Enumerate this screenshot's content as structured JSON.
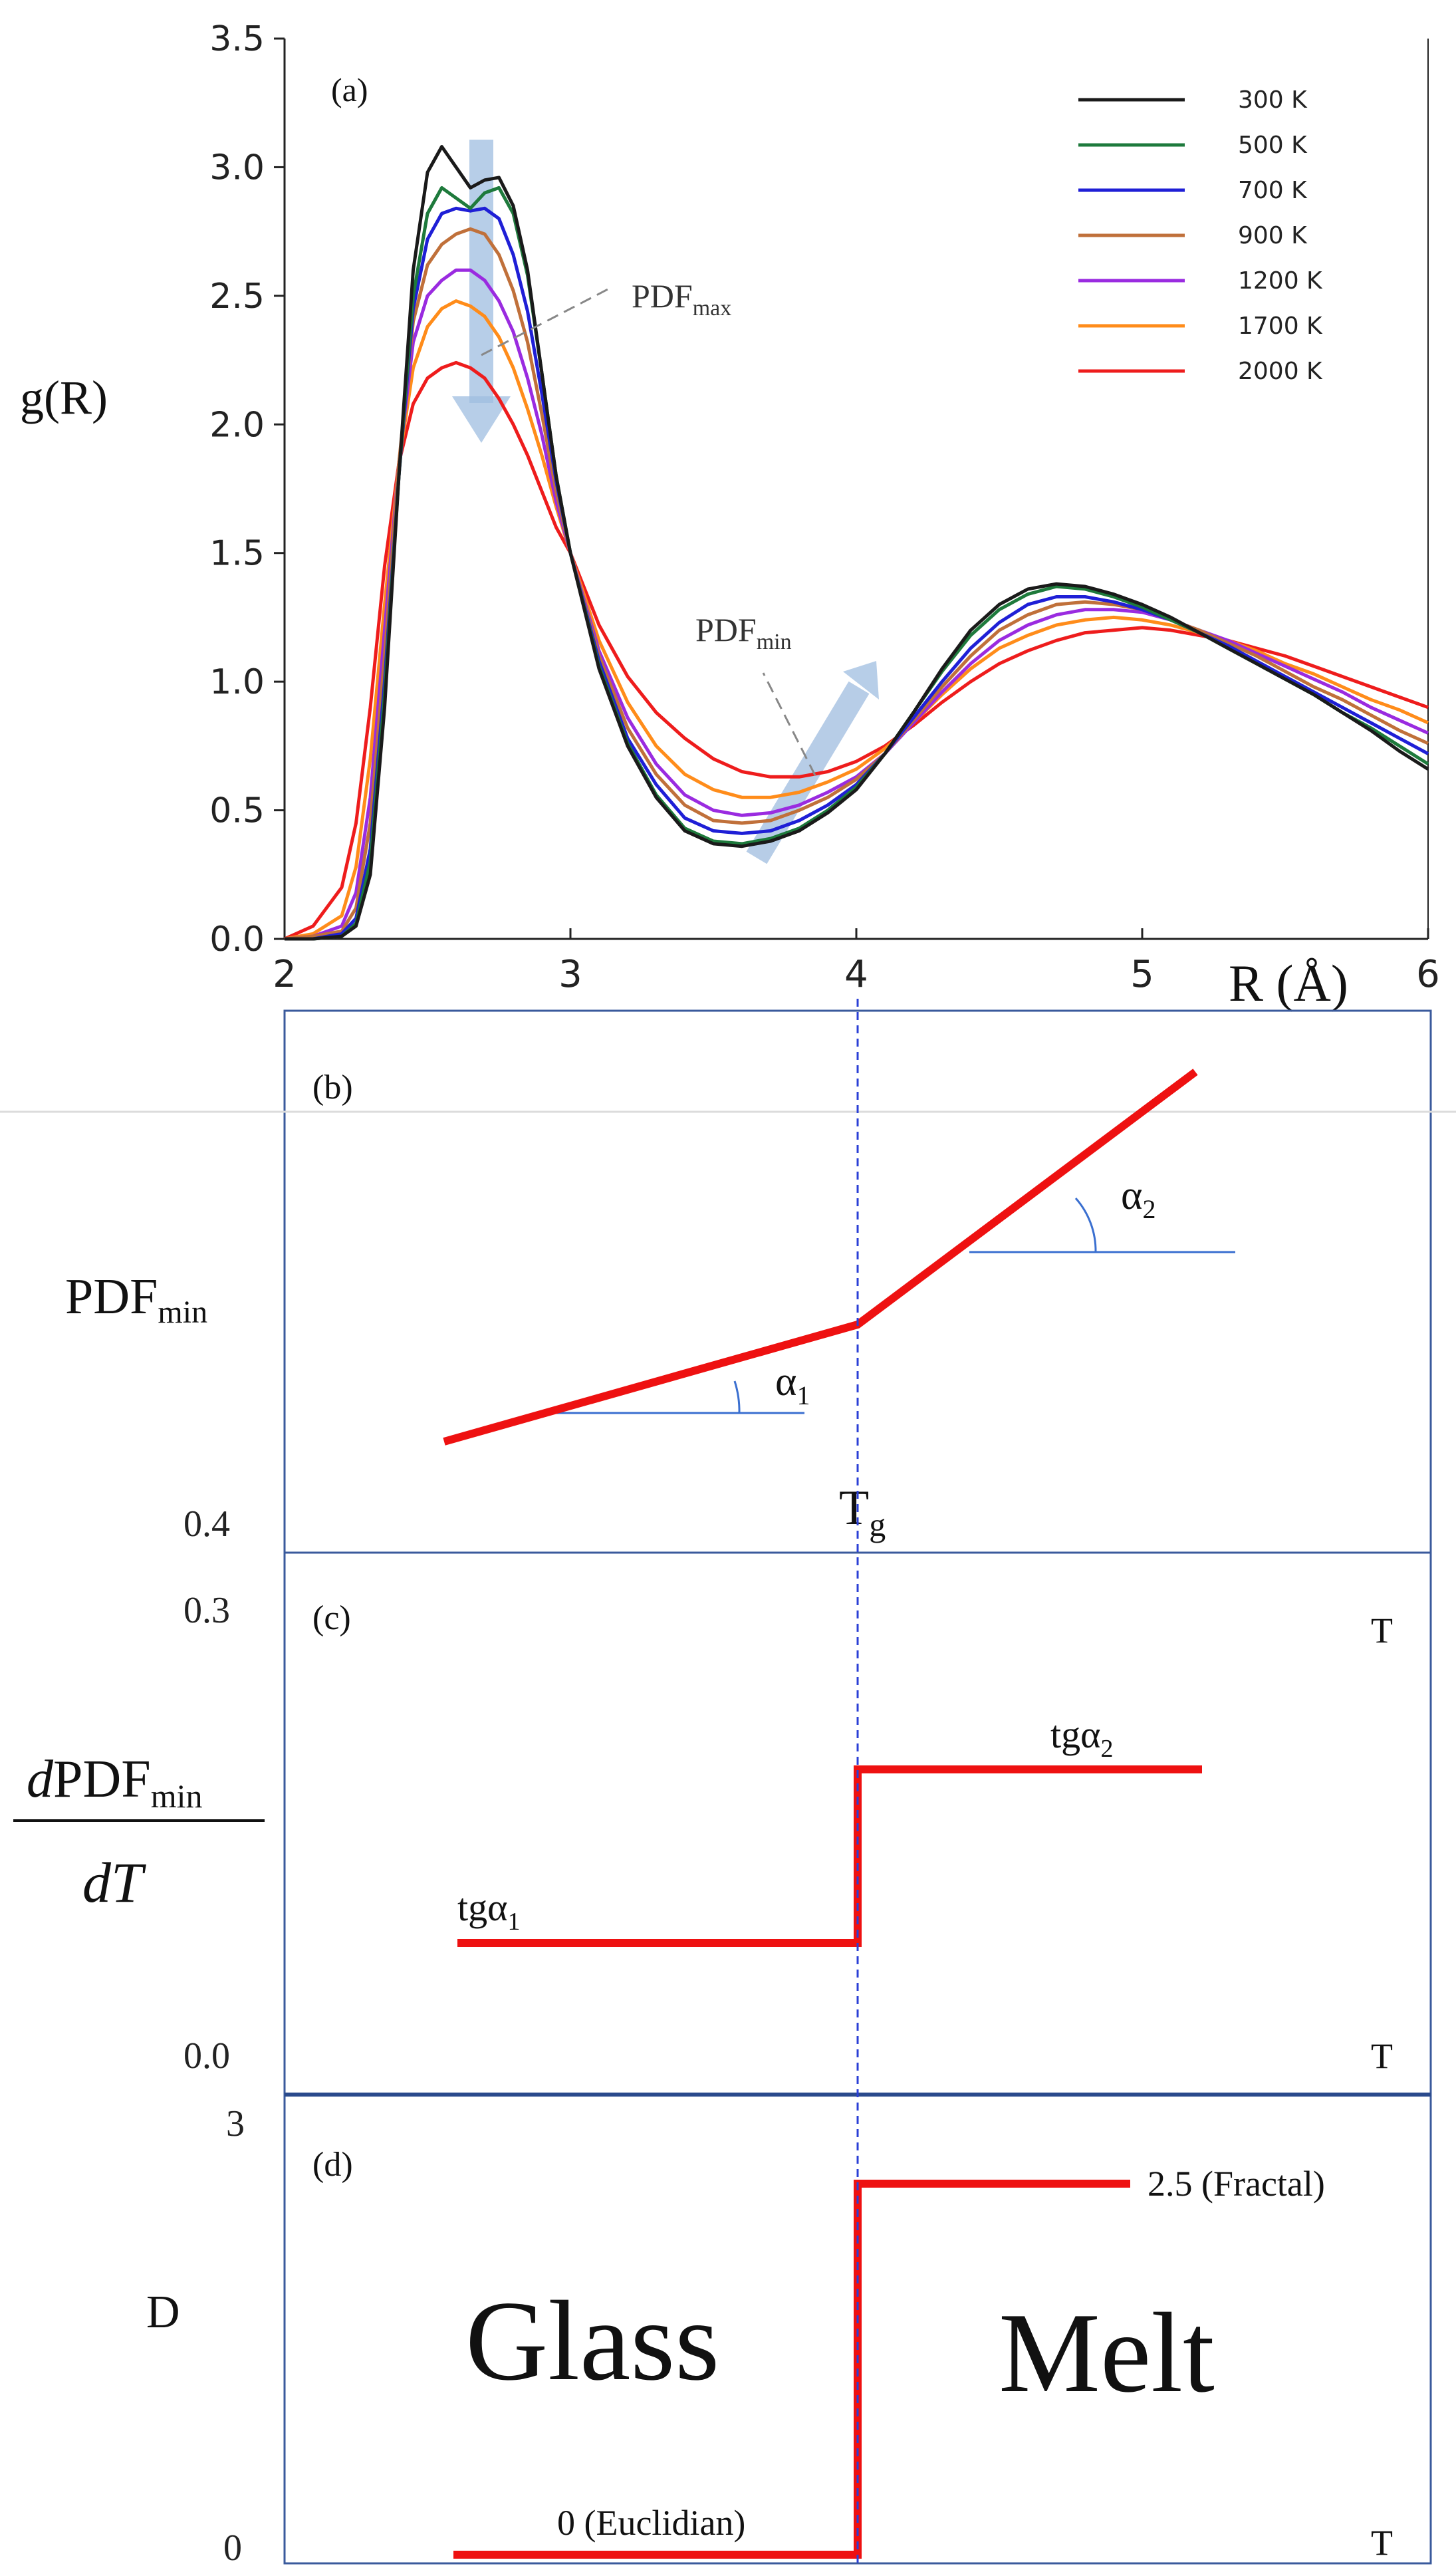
{
  "chart_data": [
    {
      "panel": "(a)",
      "type": "line",
      "title": "",
      "xlabel": "R (Å)",
      "ylabel": "g(R)",
      "xlim": [
        2,
        6
      ],
      "ylim": [
        0,
        3.5
      ],
      "x_ticks": [
        "2",
        "3",
        "4",
        "5",
        "6"
      ],
      "y_ticks": [
        "0.0",
        "0.5",
        "1.0",
        "1.5",
        "2.0",
        "2.5",
        "3.0",
        "3.5"
      ],
      "legend_position": "top-right",
      "annotations": {
        "pdf_max": "PDF",
        "pdf_max_sub": "max",
        "pdf_min": "PDF",
        "pdf_min_sub": "min"
      },
      "series": [
        {
          "name": "300 K",
          "color": "#1a1a1a",
          "x": [
            2.0,
            2.1,
            2.2,
            2.25,
            2.3,
            2.35,
            2.4,
            2.45,
            2.5,
            2.55,
            2.6,
            2.65,
            2.7,
            2.75,
            2.8,
            2.85,
            2.9,
            2.95,
            3.0,
            3.1,
            3.2,
            3.3,
            3.4,
            3.5,
            3.6,
            3.7,
            3.8,
            3.9,
            4.0,
            4.1,
            4.2,
            4.3,
            4.4,
            4.5,
            4.6,
            4.7,
            4.8,
            4.9,
            5.0,
            5.1,
            5.2,
            5.3,
            5.4,
            5.5,
            5.6,
            5.7,
            5.8,
            5.9,
            6.0
          ],
          "y": [
            0.0,
            0.0,
            0.01,
            0.05,
            0.25,
            0.9,
            1.8,
            2.6,
            2.98,
            3.08,
            3.0,
            2.92,
            2.95,
            2.96,
            2.85,
            2.6,
            2.2,
            1.8,
            1.5,
            1.05,
            0.75,
            0.55,
            0.42,
            0.37,
            0.36,
            0.38,
            0.42,
            0.49,
            0.58,
            0.72,
            0.88,
            1.05,
            1.2,
            1.3,
            1.36,
            1.38,
            1.37,
            1.34,
            1.3,
            1.25,
            1.19,
            1.13,
            1.07,
            1.01,
            0.95,
            0.88,
            0.81,
            0.73,
            0.66
          ]
        },
        {
          "name": "500 K",
          "color": "#1e7a3c",
          "x": [
            2.0,
            2.1,
            2.2,
            2.25,
            2.3,
            2.35,
            2.4,
            2.45,
            2.5,
            2.55,
            2.6,
            2.65,
            2.7,
            2.75,
            2.8,
            2.85,
            2.9,
            2.95,
            3.0,
            3.1,
            3.2,
            3.3,
            3.4,
            3.5,
            3.6,
            3.7,
            3.8,
            3.9,
            4.0,
            4.1,
            4.2,
            4.3,
            4.4,
            4.5,
            4.6,
            4.7,
            4.8,
            4.9,
            5.0,
            5.1,
            5.2,
            5.3,
            5.4,
            5.5,
            5.6,
            5.7,
            5.8,
            5.9,
            6.0
          ],
          "y": [
            0.0,
            0.0,
            0.01,
            0.06,
            0.3,
            0.95,
            1.8,
            2.5,
            2.82,
            2.92,
            2.88,
            2.84,
            2.9,
            2.92,
            2.82,
            2.58,
            2.2,
            1.8,
            1.5,
            1.06,
            0.76,
            0.56,
            0.43,
            0.38,
            0.37,
            0.39,
            0.43,
            0.5,
            0.59,
            0.72,
            0.88,
            1.04,
            1.18,
            1.28,
            1.34,
            1.37,
            1.36,
            1.33,
            1.29,
            1.24,
            1.19,
            1.13,
            1.07,
            1.01,
            0.95,
            0.88,
            0.82,
            0.75,
            0.68
          ]
        },
        {
          "name": "700 K",
          "color": "#1f1fd6",
          "x": [
            2.0,
            2.1,
            2.2,
            2.25,
            2.3,
            2.35,
            2.4,
            2.45,
            2.5,
            2.55,
            2.6,
            2.65,
            2.7,
            2.75,
            2.8,
            2.85,
            2.9,
            2.95,
            3.0,
            3.1,
            3.2,
            3.3,
            3.4,
            3.5,
            3.6,
            3.7,
            3.8,
            3.9,
            4.0,
            4.1,
            4.2,
            4.3,
            4.4,
            4.5,
            4.6,
            4.7,
            4.8,
            4.9,
            5.0,
            5.1,
            5.2,
            5.3,
            5.4,
            5.5,
            5.6,
            5.7,
            5.8,
            5.9,
            6.0
          ],
          "y": [
            0.0,
            0.0,
            0.02,
            0.08,
            0.35,
            1.0,
            1.8,
            2.45,
            2.72,
            2.82,
            2.84,
            2.83,
            2.84,
            2.8,
            2.66,
            2.44,
            2.12,
            1.78,
            1.5,
            1.08,
            0.78,
            0.6,
            0.47,
            0.42,
            0.41,
            0.42,
            0.46,
            0.52,
            0.6,
            0.72,
            0.86,
            1.0,
            1.13,
            1.23,
            1.3,
            1.33,
            1.33,
            1.31,
            1.28,
            1.24,
            1.19,
            1.14,
            1.08,
            1.02,
            0.96,
            0.9,
            0.84,
            0.78,
            0.72
          ]
        },
        {
          "name": "900 K",
          "color": "#c0703a",
          "x": [
            2.0,
            2.1,
            2.2,
            2.25,
            2.3,
            2.35,
            2.4,
            2.45,
            2.5,
            2.55,
            2.6,
            2.65,
            2.7,
            2.75,
            2.8,
            2.85,
            2.9,
            2.95,
            3.0,
            3.1,
            3.2,
            3.3,
            3.4,
            3.5,
            3.6,
            3.7,
            3.8,
            3.9,
            4.0,
            4.1,
            4.2,
            4.3,
            4.4,
            4.5,
            4.6,
            4.7,
            4.8,
            4.9,
            5.0,
            5.1,
            5.2,
            5.3,
            5.4,
            5.5,
            5.6,
            5.7,
            5.8,
            5.9,
            6.0
          ],
          "y": [
            0.0,
            0.01,
            0.03,
            0.12,
            0.45,
            1.1,
            1.85,
            2.4,
            2.62,
            2.7,
            2.74,
            2.76,
            2.74,
            2.66,
            2.52,
            2.32,
            2.04,
            1.74,
            1.5,
            1.1,
            0.82,
            0.64,
            0.52,
            0.46,
            0.45,
            0.46,
            0.5,
            0.55,
            0.62,
            0.72,
            0.85,
            0.98,
            1.1,
            1.2,
            1.26,
            1.3,
            1.31,
            1.3,
            1.28,
            1.24,
            1.2,
            1.15,
            1.1,
            1.04,
            0.98,
            0.93,
            0.87,
            0.81,
            0.76
          ]
        },
        {
          "name": "1200 K",
          "color": "#9a2be0",
          "x": [
            2.0,
            2.1,
            2.2,
            2.25,
            2.3,
            2.35,
            2.4,
            2.45,
            2.5,
            2.55,
            2.6,
            2.65,
            2.7,
            2.75,
            2.8,
            2.85,
            2.9,
            2.95,
            3.0,
            3.1,
            3.2,
            3.3,
            3.4,
            3.5,
            3.6,
            3.7,
            3.8,
            3.9,
            4.0,
            4.1,
            4.2,
            4.3,
            4.4,
            4.5,
            4.6,
            4.7,
            4.8,
            4.9,
            5.0,
            5.1,
            5.2,
            5.3,
            5.4,
            5.5,
            5.6,
            5.7,
            5.8,
            5.9,
            6.0
          ],
          "y": [
            0.0,
            0.01,
            0.05,
            0.18,
            0.55,
            1.2,
            1.85,
            2.32,
            2.5,
            2.56,
            2.6,
            2.6,
            2.56,
            2.48,
            2.36,
            2.18,
            1.96,
            1.7,
            1.5,
            1.12,
            0.86,
            0.68,
            0.56,
            0.5,
            0.48,
            0.49,
            0.52,
            0.57,
            0.63,
            0.72,
            0.84,
            0.96,
            1.07,
            1.16,
            1.22,
            1.26,
            1.28,
            1.28,
            1.27,
            1.24,
            1.2,
            1.16,
            1.11,
            1.06,
            1.01,
            0.96,
            0.9,
            0.85,
            0.8
          ]
        },
        {
          "name": "1700 K",
          "color": "#ff8c1a",
          "x": [
            2.0,
            2.1,
            2.2,
            2.25,
            2.3,
            2.35,
            2.4,
            2.45,
            2.5,
            2.55,
            2.6,
            2.65,
            2.7,
            2.75,
            2.8,
            2.85,
            2.9,
            2.95,
            3.0,
            3.1,
            3.2,
            3.3,
            3.4,
            3.5,
            3.6,
            3.7,
            3.8,
            3.9,
            4.0,
            4.1,
            4.2,
            4.3,
            4.4,
            4.5,
            4.6,
            4.7,
            4.8,
            4.9,
            5.0,
            5.1,
            5.2,
            5.3,
            5.4,
            5.5,
            5.6,
            5.7,
            5.8,
            5.9,
            6.0
          ],
          "y": [
            0.0,
            0.02,
            0.09,
            0.28,
            0.7,
            1.3,
            1.85,
            2.22,
            2.38,
            2.45,
            2.48,
            2.46,
            2.42,
            2.34,
            2.22,
            2.06,
            1.88,
            1.68,
            1.5,
            1.16,
            0.92,
            0.75,
            0.64,
            0.58,
            0.55,
            0.55,
            0.57,
            0.61,
            0.66,
            0.74,
            0.84,
            0.95,
            1.05,
            1.13,
            1.18,
            1.22,
            1.24,
            1.25,
            1.24,
            1.22,
            1.19,
            1.16,
            1.12,
            1.07,
            1.03,
            0.98,
            0.93,
            0.89,
            0.84
          ]
        },
        {
          "name": "2000 K",
          "color": "#ee1c1c",
          "x": [
            2.0,
            2.1,
            2.2,
            2.25,
            2.3,
            2.35,
            2.4,
            2.45,
            2.5,
            2.55,
            2.6,
            2.65,
            2.7,
            2.75,
            2.8,
            2.85,
            2.9,
            2.95,
            3.0,
            3.1,
            3.2,
            3.3,
            3.4,
            3.5,
            3.6,
            3.7,
            3.8,
            3.9,
            4.0,
            4.1,
            4.2,
            4.3,
            4.4,
            4.5,
            4.6,
            4.7,
            4.8,
            4.9,
            5.0,
            5.1,
            5.2,
            5.3,
            5.4,
            5.5,
            5.6,
            5.7,
            5.8,
            5.9,
            6.0
          ],
          "y": [
            0.0,
            0.05,
            0.2,
            0.45,
            0.9,
            1.45,
            1.85,
            2.08,
            2.18,
            2.22,
            2.24,
            2.22,
            2.18,
            2.1,
            2.0,
            1.88,
            1.74,
            1.6,
            1.5,
            1.22,
            1.02,
            0.88,
            0.78,
            0.7,
            0.65,
            0.63,
            0.63,
            0.65,
            0.69,
            0.75,
            0.83,
            0.92,
            1.0,
            1.07,
            1.12,
            1.16,
            1.19,
            1.2,
            1.21,
            1.2,
            1.18,
            1.16,
            1.13,
            1.1,
            1.06,
            1.02,
            0.98,
            0.94,
            0.9
          ]
        }
      ]
    },
    {
      "panel": "(b)",
      "type": "line",
      "ylabel": "PDF",
      "ylabel_sub": "min",
      "y_tick": "0.4",
      "marker_label": "T",
      "marker_label_sub": "g",
      "angle_1": "α",
      "angle_1_sub": "1",
      "angle_2": "α",
      "angle_2_sub": "2"
    },
    {
      "panel": "(c)",
      "type": "line",
      "ylabel_num_italic": "d",
      "ylabel_num": "PDF",
      "ylabel_num_sub": "min",
      "ylabel_den": "dT",
      "y_ticks": [
        "0.3",
        "0.0"
      ],
      "x_label_top": "T",
      "x_label_bottom": "T",
      "step_low": "tgα",
      "step_low_sub": "1",
      "step_high": "tgα",
      "step_high_sub": "2"
    },
    {
      "panel": "(d)",
      "type": "line",
      "ylabel": "D",
      "y_ticks": [
        "3",
        "0"
      ],
      "x_label": "T",
      "region_left": "Glass",
      "region_right": "Melt",
      "level_high": "2.5 (Fractal)",
      "level_low": "0 (Euclidian)"
    }
  ],
  "colors": {
    "frame": "#3a5a9c",
    "red": "#ee1111",
    "angle_line": "#3a6fd0",
    "arrow": "#9fbde0",
    "tg_dashed": "#2a3fd6"
  }
}
